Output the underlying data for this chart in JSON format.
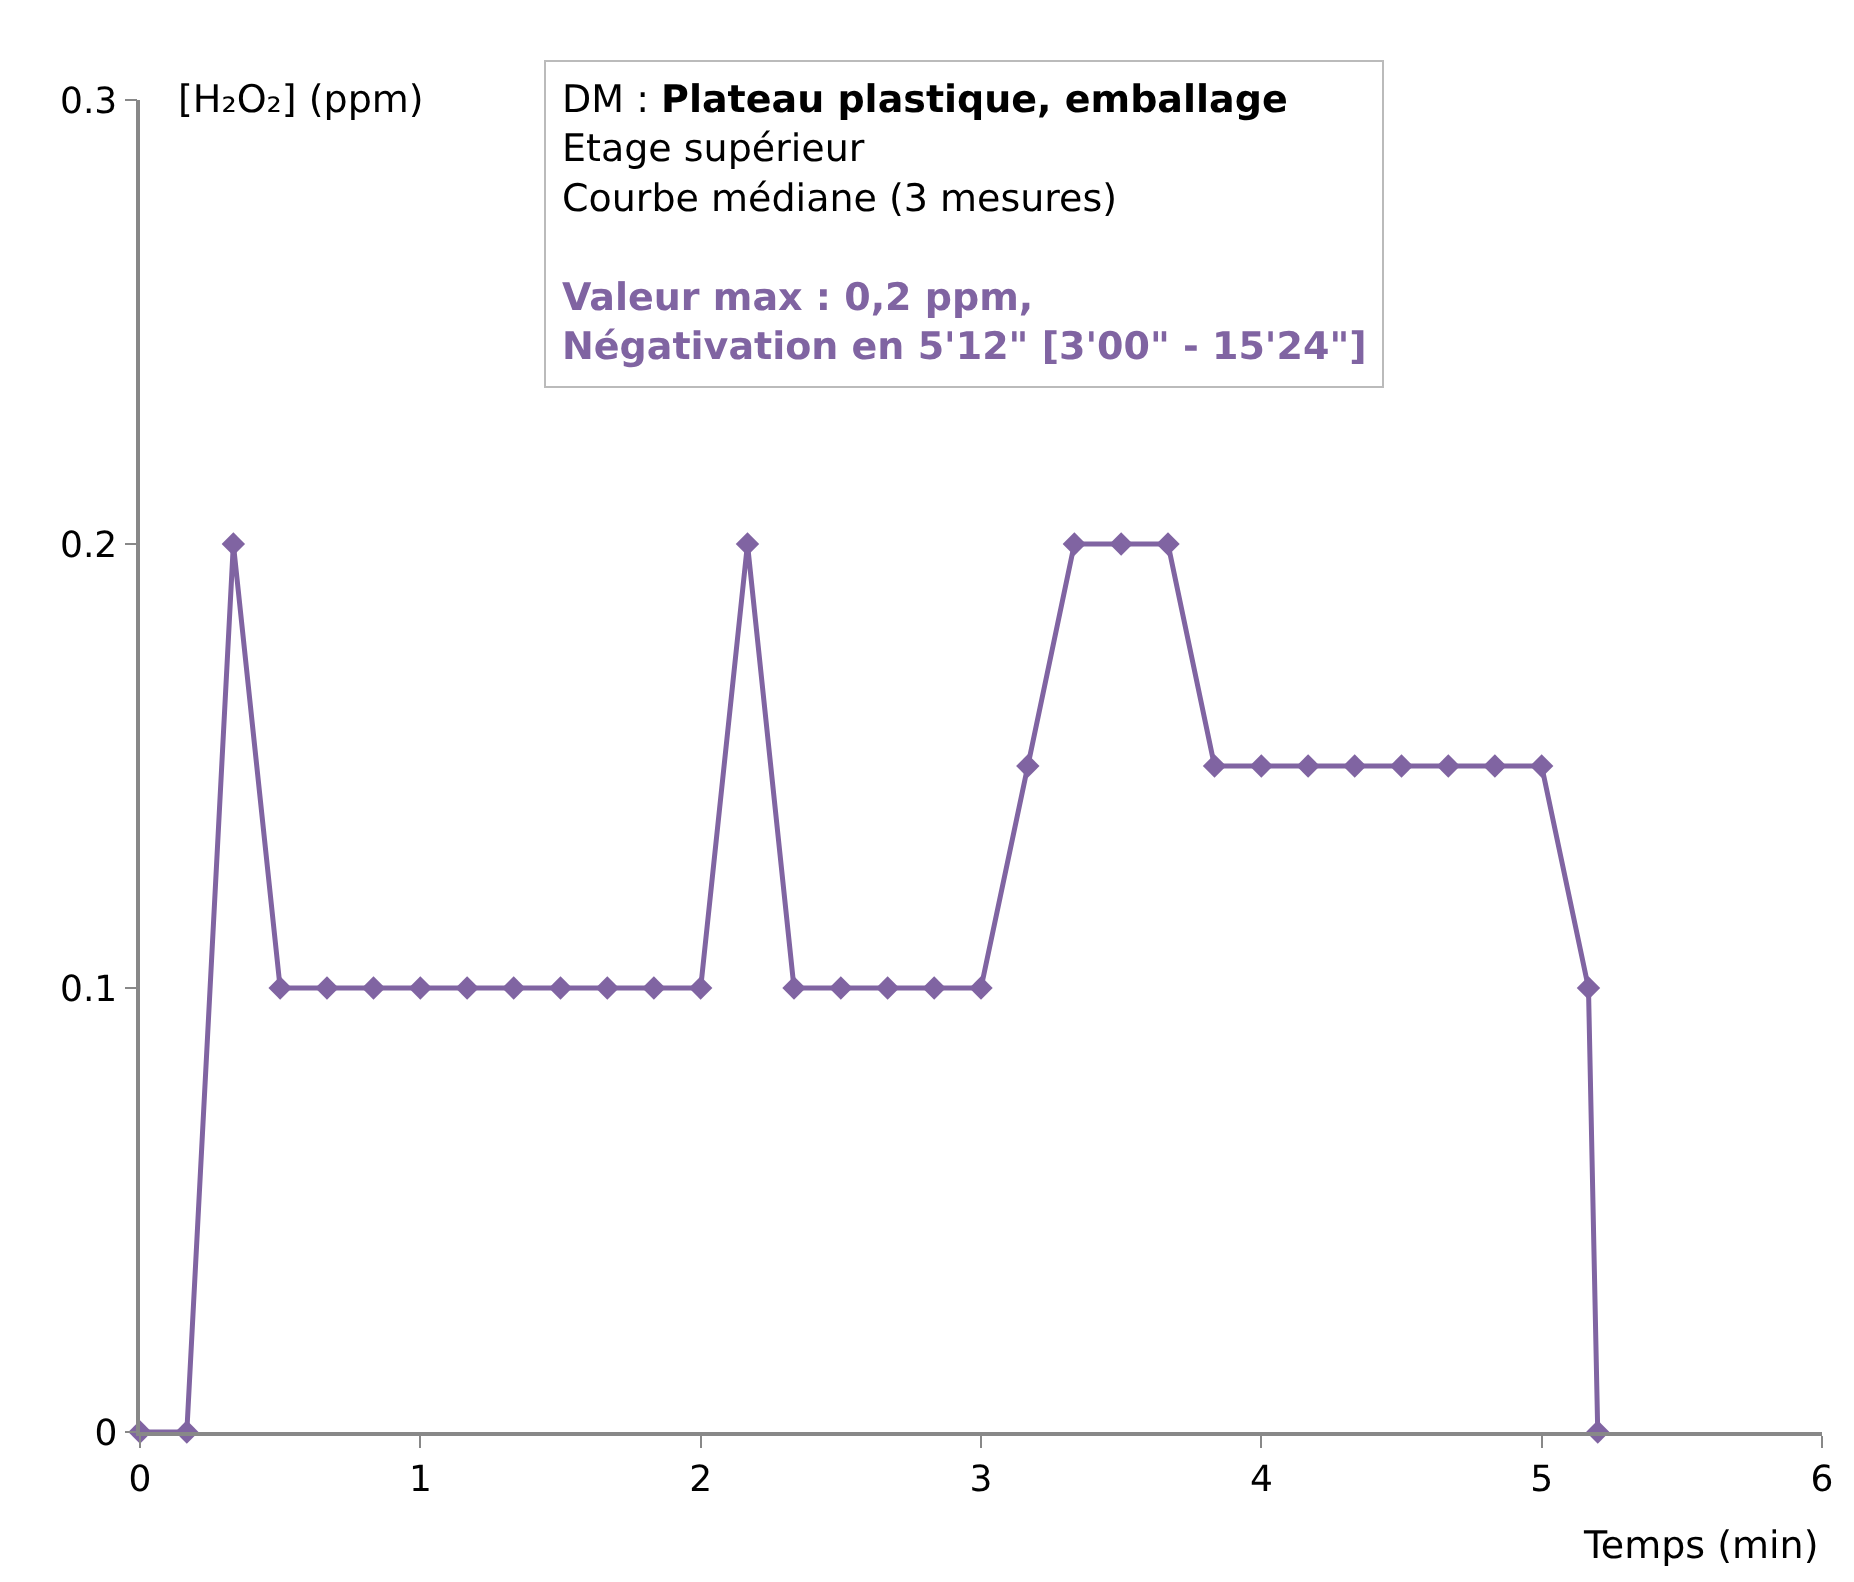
{
  "chart_data": {
    "type": "line",
    "xlabel": "Temps (min)",
    "ylabel": "[H₂O₂] (ppm)",
    "x": [
      0,
      0.167,
      0.333,
      0.5,
      0.667,
      0.833,
      1.0,
      1.167,
      1.333,
      1.5,
      1.667,
      1.833,
      2.0,
      2.167,
      2.333,
      2.5,
      2.667,
      2.833,
      3.0,
      3.167,
      3.333,
      3.5,
      3.667,
      3.833,
      4.0,
      4.167,
      4.333,
      4.5,
      4.667,
      4.833,
      5.0,
      5.167,
      5.2
    ],
    "series": [
      {
        "color": "#8064a2",
        "values": [
          0,
          0,
          0.2,
          0.1,
          0.1,
          0.1,
          0.1,
          0.1,
          0.1,
          0.1,
          0.1,
          0.1,
          0.1,
          0.2,
          0.1,
          0.1,
          0.1,
          0.1,
          0.1,
          0.15,
          0.2,
          0.2,
          0.2,
          0.15,
          0.15,
          0.15,
          0.15,
          0.15,
          0.15,
          0.15,
          0.15,
          0.1,
          0
        ]
      }
    ],
    "xlim": [
      0,
      6
    ],
    "xticks": [
      0,
      1,
      2,
      3,
      4,
      5,
      6
    ],
    "ylim": [
      0,
      0.3
    ],
    "yticks": [
      0,
      0.1,
      0.2,
      0.3
    ],
    "legend": false,
    "marker": "diamond",
    "line_style": "solid",
    "annotations": [
      "DM : Plateau plastique, emballage",
      "Etage supérieur",
      "Courbe médiane (3 mesures)",
      "Valeur max : 0,2 ppm,",
      "Négativation en 5'12\" [3'00\" - 15'24\"]"
    ]
  }
}
